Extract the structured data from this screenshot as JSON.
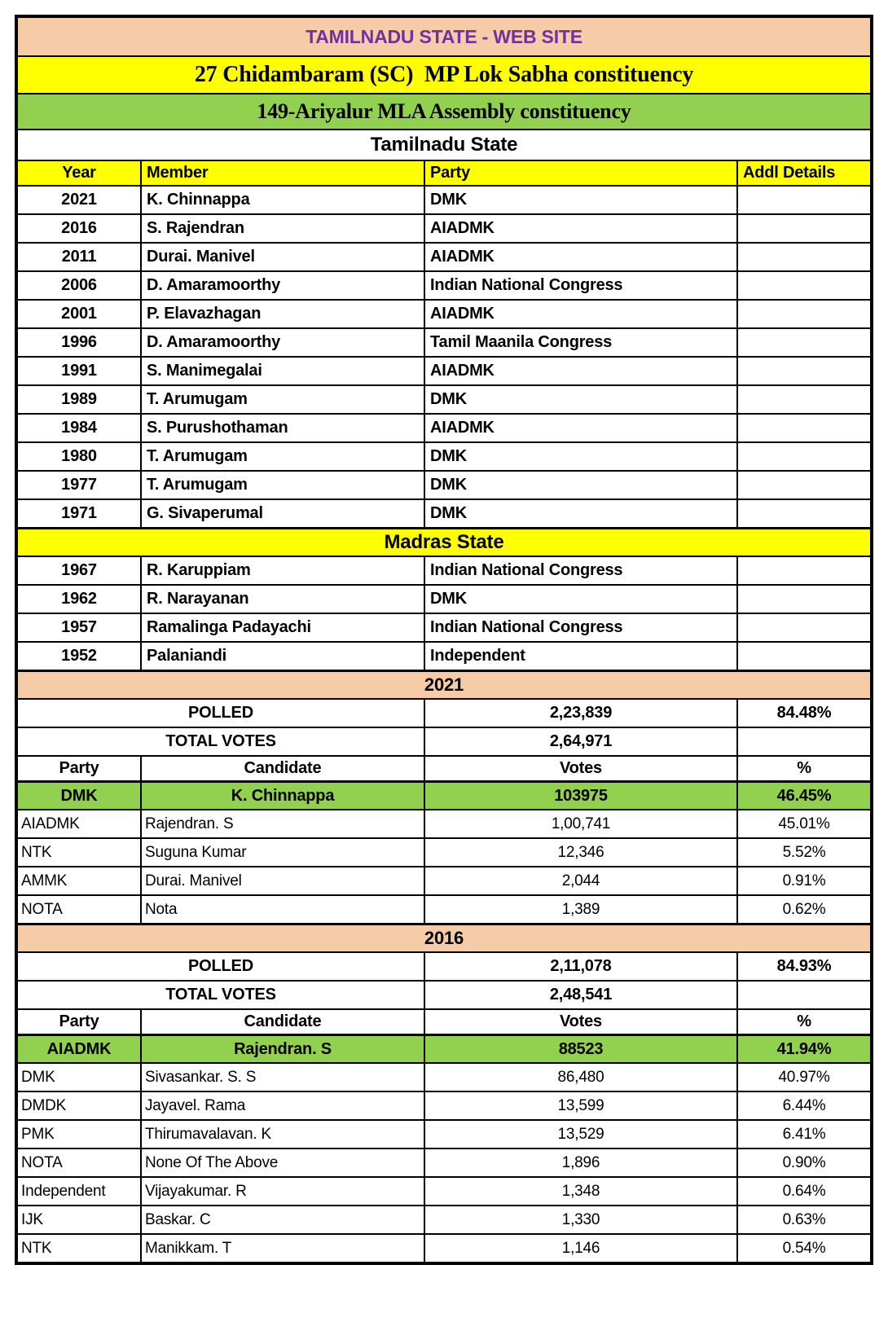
{
  "page": {
    "site_title": "TAMILNADU STATE - WEB SITE",
    "mp_constituency_title": "27 Chidambaram (SC)  MP Lok Sabha constituency",
    "mla_constituency_title": "149-Ariyalur MLA Assembly constituency"
  },
  "colors": {
    "banner_peach": "#F5CBA8",
    "banner_yellow": "#FFFF00",
    "winner_green": "#92D050",
    "title_purple": "#7030A0"
  },
  "members_table": {
    "columns": {
      "year": "Year",
      "member": "Member",
      "party": "Party",
      "addl": "Addl Details"
    },
    "sections": [
      {
        "state_title": "Tamilnadu State",
        "rows": [
          {
            "year": "2021",
            "member": "K. Chinnappa",
            "party": "DMK"
          },
          {
            "year": "2016",
            "member": "S. Rajendran",
            "party": "AIADMK"
          },
          {
            "year": "2011",
            "member": "Durai. Manivel",
            "party": "AIADMK"
          },
          {
            "year": "2006",
            "member": "D. Amaramoorthy",
            "party": "Indian National Congress"
          },
          {
            "year": "2001",
            "member": "P. Elavazhagan",
            "party": "AIADMK"
          },
          {
            "year": "1996",
            "member": "D. Amaramoorthy",
            "party": "Tamil Maanila Congress"
          },
          {
            "year": "1991",
            "member": "S. Manimegalai",
            "party": "AIADMK"
          },
          {
            "year": "1989",
            "member": "T. Arumugam",
            "party": "DMK"
          },
          {
            "year": "1984",
            "member": "S. Purushothaman",
            "party": "AIADMK"
          },
          {
            "year": "1980",
            "member": "T. Arumugam",
            "party": "DMK"
          },
          {
            "year": "1977",
            "member": "T. Arumugam",
            "party": "DMK"
          },
          {
            "year": "1971",
            "member": "G. Sivaperumal",
            "party": "DMK"
          }
        ]
      },
      {
        "state_title": "Madras State",
        "rows": [
          {
            "year": "1967",
            "member": "R. Karuppiam",
            "party": "Indian National Congress"
          },
          {
            "year": "1962",
            "member": "R. Narayanan",
            "party": "DMK"
          },
          {
            "year": "1957",
            "member": "Ramalinga Padayachi",
            "party": "Indian National Congress"
          },
          {
            "year": "1952",
            "member": "Palaniandi",
            "party": "Independent"
          }
        ]
      }
    ]
  },
  "elections": [
    {
      "year_title": "2021",
      "polled_label": "POLLED",
      "polled_votes": "2,23,839",
      "polled_pct": "84.48%",
      "total_votes_label": "TOTAL VOTES",
      "total_votes": "2,64,971",
      "columns": {
        "party": "Party",
        "candidate": "Candidate",
        "votes": "Votes",
        "pct": "%"
      },
      "winner": {
        "party": "DMK",
        "candidate": "K. Chinnappa",
        "votes": "103975",
        "pct": "46.45%"
      },
      "rows": [
        {
          "party": "AIADMK",
          "candidate": "Rajendran. S",
          "votes": "1,00,741",
          "pct": "45.01%"
        },
        {
          "party": "NTK",
          "candidate": "Suguna Kumar",
          "votes": "12,346",
          "pct": "5.52%"
        },
        {
          "party": "AMMK",
          "candidate": "Durai. Manivel",
          "votes": "2,044",
          "pct": "0.91%"
        },
        {
          "party": "NOTA",
          "candidate": "Nota",
          "votes": "1,389",
          "pct": "0.62%"
        }
      ]
    },
    {
      "year_title": "2016",
      "polled_label": "POLLED",
      "polled_votes": "2,11,078",
      "polled_pct": "84.93%",
      "total_votes_label": "TOTAL VOTES",
      "total_votes": "2,48,541",
      "columns": {
        "party": "Party",
        "candidate": "Candidate",
        "votes": "Votes",
        "pct": "%"
      },
      "winner": {
        "party": "AIADMK",
        "candidate": "Rajendran. S",
        "votes": "88523",
        "pct": "41.94%"
      },
      "rows": [
        {
          "party": "DMK",
          "candidate": "Sivasankar. S. S",
          "votes": "86,480",
          "pct": "40.97%"
        },
        {
          "party": "DMDK",
          "candidate": "Jayavel. Rama",
          "votes": "13,599",
          "pct": "6.44%"
        },
        {
          "party": "PMK",
          "candidate": "Thirumavalavan. K",
          "votes": "13,529",
          "pct": "6.41%"
        },
        {
          "party": "NOTA",
          "candidate": "None Of The Above",
          "votes": "1,896",
          "pct": "0.90%"
        },
        {
          "party": "Independent",
          "candidate": "Vijayakumar. R",
          "votes": "1,348",
          "pct": "0.64%"
        },
        {
          "party": "IJK",
          "candidate": "Baskar. C",
          "votes": "1,330",
          "pct": "0.63%"
        },
        {
          "party": "NTK",
          "candidate": "Manikkam. T",
          "votes": "1,146",
          "pct": "0.54%"
        }
      ]
    }
  ]
}
